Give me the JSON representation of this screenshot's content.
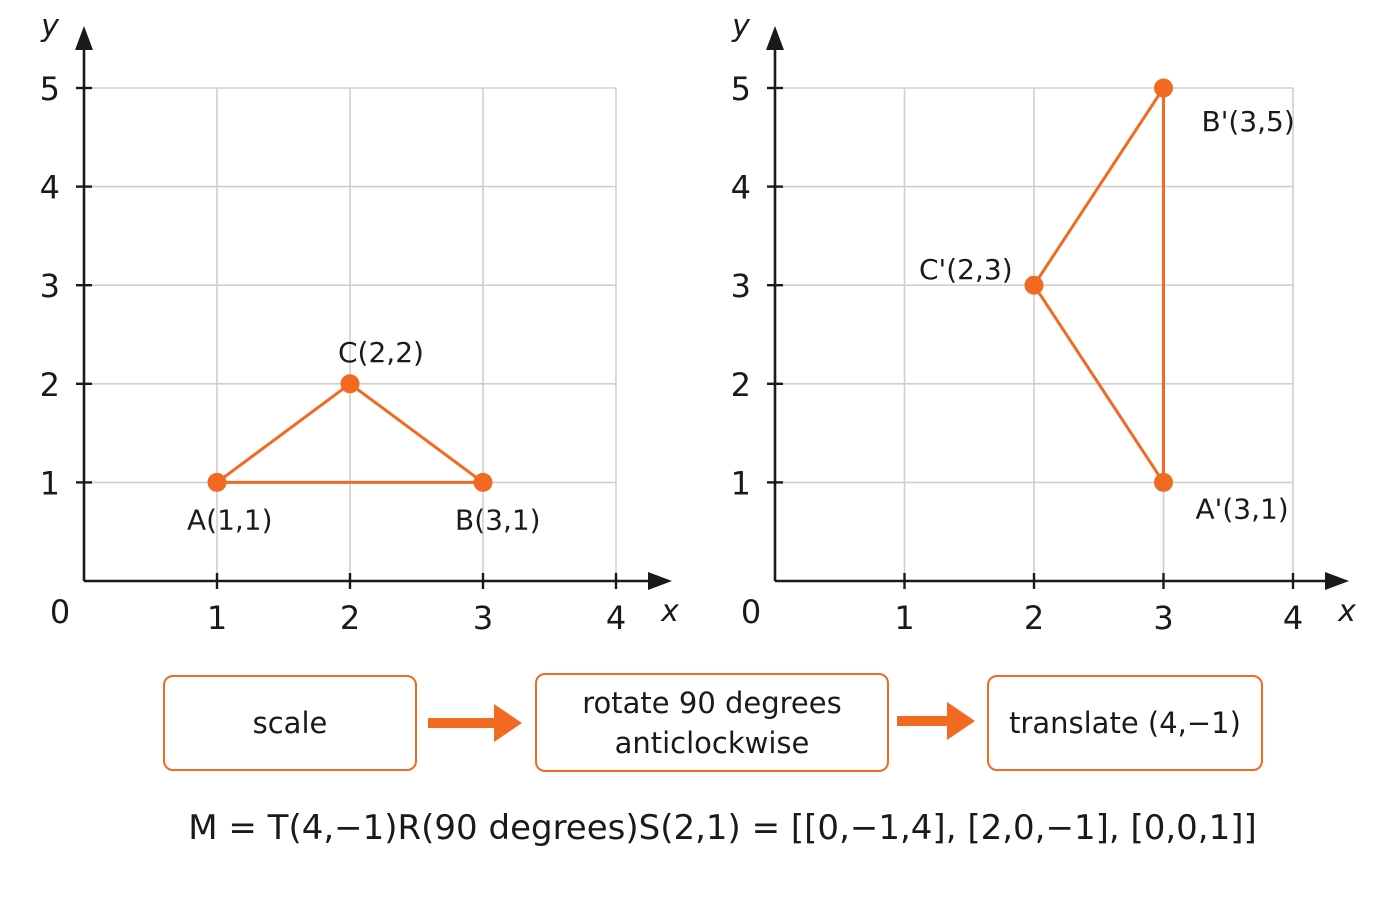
{
  "colors": {
    "accent": "#f26a21",
    "grid": "#cfcfcf",
    "axis": "#1a1a1a"
  },
  "chart_data": [
    {
      "type": "scatter",
      "xlabel": "x",
      "ylabel": "y",
      "xlim": [
        0,
        4
      ],
      "ylim": [
        0,
        5
      ],
      "origin_label": "0",
      "x_ticks": [
        "1",
        "2",
        "3",
        "4"
      ],
      "y_ticks": [
        "1",
        "2",
        "3",
        "4",
        "5"
      ],
      "grid": true,
      "polygon": [
        {
          "label": "A(1,1)",
          "x": 1,
          "y": 1
        },
        {
          "label": "B(3,1)",
          "x": 3,
          "y": 1
        },
        {
          "label": "C(2,2)",
          "x": 2,
          "y": 2
        }
      ]
    },
    {
      "type": "scatter",
      "xlabel": "x",
      "ylabel": "y",
      "xlim": [
        0,
        4
      ],
      "ylim": [
        0,
        5
      ],
      "origin_label": "0",
      "x_ticks": [
        "1",
        "2",
        "3",
        "4"
      ],
      "y_ticks": [
        "1",
        "2",
        "3",
        "4",
        "5"
      ],
      "grid": true,
      "polygon": [
        {
          "label": "A'(3,1)",
          "x": 3,
          "y": 1
        },
        {
          "label": "B'(3,5)",
          "x": 3,
          "y": 5
        },
        {
          "label": "C'(2,3)",
          "x": 2,
          "y": 3
        }
      ]
    }
  ],
  "flow": {
    "steps": [
      {
        "line1": "scale",
        "line2": ""
      },
      {
        "line1": "rotate 90 degrees",
        "line2": "anticlockwise"
      },
      {
        "line1": "translate (4,−1)",
        "line2": ""
      }
    ],
    "arrow_icon": "right-arrow-icon"
  },
  "formula": "M = T(4,−1)R(90 degrees)S(2,1) = [[0,−1,4], [2,0,−1], [0,0,1]]"
}
